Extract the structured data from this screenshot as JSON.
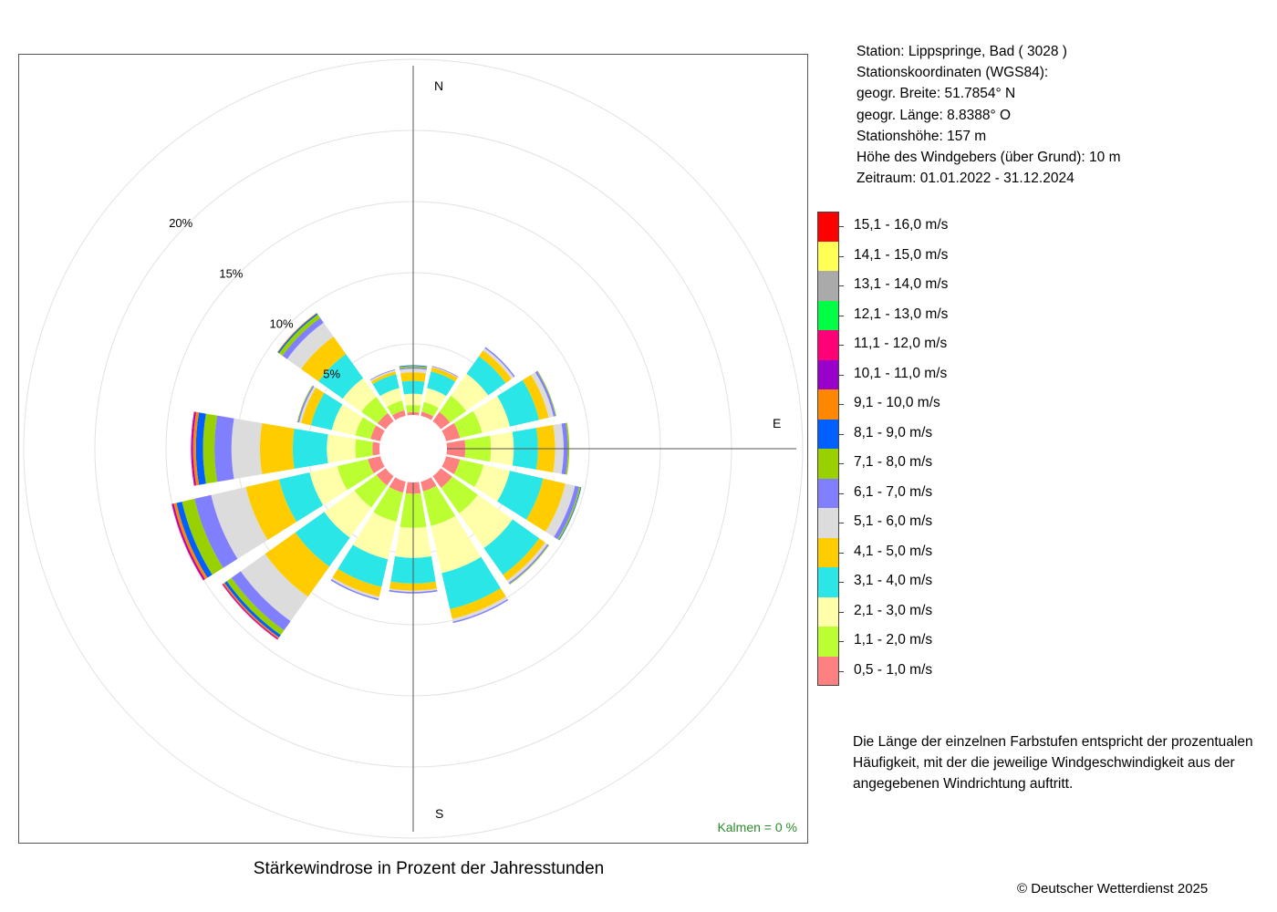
{
  "chart_data": {
    "type": "polar-stacked-bar",
    "title": "Stärkewindrose in Prozent der Jahresstunden",
    "directions": [
      "N",
      "NNE",
      "NE",
      "ENE",
      "E",
      "ESE",
      "SE",
      "SSE",
      "S",
      "SSW",
      "SW",
      "WSW",
      "W",
      "WNW",
      "NW",
      "NNW"
    ],
    "direction_angles_deg": [
      0,
      22.5,
      45,
      67.5,
      90,
      112.5,
      135,
      157.5,
      180,
      202.5,
      225,
      247.5,
      270,
      292.5,
      315,
      337.5
    ],
    "axis_labels": {
      "N": "N",
      "E": "E",
      "S": "S"
    },
    "radial_ticks": [
      {
        "value": 5,
        "label": "5%"
      },
      {
        "value": 10,
        "label": "10%"
      },
      {
        "value": 15,
        "label": "15%"
      },
      {
        "value": 20,
        "label": "20%"
      }
    ],
    "radial_gridlines": [
      5,
      10,
      15,
      20,
      25
    ],
    "calm_label": "Kalmen  =  0 %",
    "speed_classes": [
      {
        "label": "0,5 - 1,0 m/s",
        "color": "#ff8080"
      },
      {
        "label": "1,1 - 2,0 m/s",
        "color": "#bbff33"
      },
      {
        "label": "2,1 - 3,0 m/s",
        "color": "#ffffaa"
      },
      {
        "label": "3,1 - 4,0 m/s",
        "color": "#2ae6e6"
      },
      {
        "label": "4,1 - 5,0 m/s",
        "color": "#ffcc00"
      },
      {
        "label": "5,1 - 6,0 m/s",
        "color": "#dcdcdc"
      },
      {
        "label": "6,1 - 7,0 m/s",
        "color": "#8080ff"
      },
      {
        "label": "7,1 - 8,0 m/s",
        "color": "#99d100"
      },
      {
        "label": "8,1 - 9,0 m/s",
        "color": "#0060ff"
      },
      {
        "label": "9,1 - 10,0 m/s",
        "color": "#ff8800"
      },
      {
        "label": "10,1 - 11,0 m/s",
        "color": "#9900cc"
      },
      {
        "label": "11,1 - 12,0 m/s",
        "color": "#ff0077"
      },
      {
        "label": "12,1 - 13,0 m/s",
        "color": "#00ff44"
      },
      {
        "label": "13,1 - 14,0 m/s",
        "color": "#aaaaaa"
      },
      {
        "label": "14,1 - 15,0 m/s",
        "color": "#ffff55"
      },
      {
        "label": "15,1 - 16,0 m/s",
        "color": "#ff0000"
      }
    ],
    "series": [
      {
        "direction": "N",
        "values": [
          0.2,
          0.5,
          0.8,
          0.9,
          0.6,
          0.25,
          0.1,
          0.1,
          0.05,
          0,
          0,
          0,
          0,
          0,
          0,
          0
        ]
      },
      {
        "direction": "NNE",
        "values": [
          0.3,
          0.7,
          1.0,
          1.2,
          0.3,
          0.05,
          0.05,
          0,
          0,
          0,
          0,
          0,
          0,
          0,
          0,
          0
        ]
      },
      {
        "direction": "NE",
        "values": [
          0.8,
          1.4,
          1.9,
          1.5,
          0.5,
          0.2,
          0.1,
          0,
          0,
          0,
          0,
          0,
          0,
          0,
          0,
          0
        ]
      },
      {
        "direction": "ENE",
        "values": [
          1.0,
          1.6,
          2.0,
          2.1,
          0.7,
          0.35,
          0.15,
          0.05,
          0,
          0,
          0,
          0,
          0,
          0,
          0,
          0
        ]
      },
      {
        "direction": "E",
        "values": [
          1.3,
          1.8,
          1.6,
          1.7,
          1.2,
          0.6,
          0.3,
          0.1,
          0,
          0,
          0,
          0,
          0,
          0,
          0,
          0
        ]
      },
      {
        "direction": "ESE",
        "values": [
          1.0,
          1.7,
          1.9,
          2.4,
          1.6,
          0.7,
          0.3,
          0.1,
          0.05,
          0,
          0,
          0,
          0,
          0,
          0,
          0
        ]
      },
      {
        "direction": "SE",
        "values": [
          1.0,
          2.2,
          3.0,
          2.3,
          0.5,
          0.2,
          0.1,
          0.05,
          0,
          0,
          0,
          0,
          0,
          0,
          0,
          0
        ]
      },
      {
        "direction": "SSE",
        "values": [
          0.7,
          2.5,
          3.4,
          2.6,
          0.7,
          0.2,
          0.1,
          0,
          0,
          0,
          0,
          0,
          0,
          0,
          0,
          0
        ]
      },
      {
        "direction": "S",
        "values": [
          0.8,
          2.4,
          2.1,
          1.8,
          0.5,
          0.1,
          0.1,
          0,
          0,
          0,
          0,
          0,
          0,
          0,
          0,
          0
        ]
      },
      {
        "direction": "SSW",
        "values": [
          0.8,
          2.1,
          2.7,
          2.0,
          0.7,
          0.15,
          0.1,
          0,
          0,
          0,
          0,
          0,
          0,
          0,
          0,
          0
        ]
      },
      {
        "direction": "SW",
        "values": [
          0.8,
          1.9,
          2.6,
          2.5,
          2.6,
          2.1,
          0.8,
          0.4,
          0.2,
          0.1,
          0.05,
          0.05,
          0,
          0,
          0,
          0
        ]
      },
      {
        "direction": "WSW",
        "values": [
          0.9,
          2.2,
          2.0,
          2.2,
          2.4,
          2.5,
          1.2,
          0.9,
          0.4,
          0.2,
          0.1,
          0.05,
          0,
          0,
          0,
          0
        ]
      },
      {
        "direction": "W",
        "values": [
          0.5,
          1.2,
          2.0,
          2.4,
          2.3,
          2.0,
          1.2,
          0.8,
          0.5,
          0.2,
          0.1,
          0.05,
          0,
          0,
          0,
          0
        ]
      },
      {
        "direction": "WNW",
        "values": [
          0.7,
          1.1,
          1.7,
          1.5,
          0.7,
          0.15,
          0.1,
          0.05,
          0,
          0,
          0,
          0,
          0,
          0,
          0,
          0
        ]
      },
      {
        "direction": "NW",
        "values": [
          0.7,
          1.4,
          1.6,
          2.1,
          1.5,
          1.2,
          0.4,
          0.3,
          0.1,
          0.05,
          0,
          0,
          0,
          0,
          0,
          0
        ]
      },
      {
        "direction": "NNW",
        "values": [
          0.4,
          0.7,
          0.9,
          1.0,
          0.2,
          0.1,
          0.05,
          0,
          0,
          0,
          0,
          0,
          0,
          0,
          0,
          0
        ]
      }
    ]
  },
  "station": {
    "line1": "Station:  Lippspringe, Bad  ( 3028 )",
    "line2": "Stationskoordinaten (WGS84):",
    "line3": "geogr. Breite: 51.7854° N",
    "line4": "geogr. Länge:   8.8388° O",
    "line5": "Stationshöhe: 157 m",
    "line6": "Höhe des Windgebers (über Grund): 10 m",
    "line7": "Zeitraum: 01.01.2022 - 31.12.2024"
  },
  "note": "Die Länge der einzelnen Farbstufen entspricht der prozentualen Häufigkeit, mit der die jeweilige Windgeschwindigkeit aus der angegebenen Windrichtung auftritt.",
  "copyright": "© Deutscher Wetterdienst  2025"
}
